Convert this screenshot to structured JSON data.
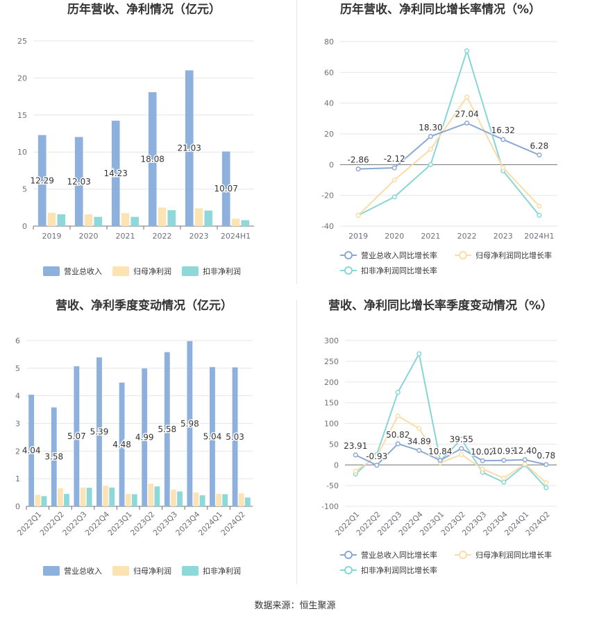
{
  "source": "数据来源：恒生聚源",
  "colors": {
    "revenue": "#8eb0dc",
    "parent_profit": "#fce3b4",
    "nonrecurring_profit": "#8fd8da",
    "revenue_line": "#8aa8d6",
    "parent_line": "#fbdca6",
    "nonrec_line": "#86d5d8",
    "grid": "#e6e6e6",
    "axis_text": "#6e7079"
  },
  "chart_data": [
    {
      "type": "bar",
      "title": "历年营收、净利情况（亿元）",
      "categories": [
        "2019",
        "2020",
        "2021",
        "2022",
        "2023",
        "2024H1"
      ],
      "series": [
        {
          "name": "营业总收入",
          "values": [
            12.29,
            12.03,
            14.23,
            18.08,
            21.03,
            10.07
          ],
          "labels": [
            "12.29",
            "12.03",
            "14.23",
            "18.08",
            "21.03",
            "10.07"
          ]
        },
        {
          "name": "归母净利润",
          "values": [
            1.8,
            1.6,
            1.75,
            2.5,
            2.4,
            1.0
          ]
        },
        {
          "name": "扣非净利润",
          "values": [
            1.6,
            1.25,
            1.25,
            2.15,
            2.1,
            0.8
          ]
        }
      ],
      "yticks": [
        "0",
        "5",
        "10",
        "15",
        "20",
        "25"
      ],
      "ylim": [
        0,
        25
      ]
    },
    {
      "type": "line",
      "title": "历年营收、净利同比增长率情况（%）",
      "categories": [
        "2019",
        "2020",
        "2021",
        "2022",
        "2023",
        "2024H1"
      ],
      "series": [
        {
          "name": "营业总收入同比增长率",
          "values": [
            -2.86,
            -2.12,
            18.3,
            27.04,
            16.32,
            6.28
          ],
          "labels": [
            "-2.86",
            "-2.12",
            "18.30",
            "27.04",
            "16.32",
            "6.28"
          ]
        },
        {
          "name": "归母净利润同比增长率",
          "values": [
            -33,
            -10,
            10,
            44,
            -2,
            -27
          ]
        },
        {
          "name": "扣非净利润同比增长率",
          "values": [
            -33,
            -21,
            0,
            74,
            -4,
            -33
          ]
        }
      ],
      "yticks": [
        "-40",
        "-20",
        "0",
        "20",
        "40",
        "60",
        "80"
      ],
      "ylim": [
        -40,
        80
      ]
    },
    {
      "type": "bar",
      "title": "营收、净利季度变动情况（亿元）",
      "categories": [
        "2022Q1",
        "2022Q2",
        "2022Q3",
        "2022Q4",
        "2023Q1",
        "2023Q2",
        "2023Q3",
        "2023Q4",
        "2024Q1",
        "2024Q2"
      ],
      "series": [
        {
          "name": "营业总收入",
          "values": [
            4.04,
            3.58,
            5.07,
            5.39,
            4.48,
            4.99,
            5.58,
            5.98,
            5.04,
            5.03
          ],
          "labels": [
            "4.04",
            "3.58",
            "5.07",
            "5.39",
            "4.48",
            "4.99",
            "5.58",
            "5.98",
            "5.04",
            "5.03"
          ]
        },
        {
          "name": "归母净利润",
          "values": [
            0.42,
            0.65,
            0.68,
            0.75,
            0.45,
            0.82,
            0.6,
            0.5,
            0.46,
            0.47
          ]
        },
        {
          "name": "扣非净利润",
          "values": [
            0.37,
            0.45,
            0.67,
            0.68,
            0.44,
            0.72,
            0.54,
            0.4,
            0.44,
            0.32
          ]
        }
      ],
      "yticks": [
        "0",
        "1",
        "2",
        "3",
        "4",
        "5",
        "6"
      ],
      "ylim": [
        0,
        6
      ]
    },
    {
      "type": "line",
      "title": "营收、净利同比增长率季度变动情况（%）",
      "categories": [
        "2022Q1",
        "2022Q2",
        "2022Q3",
        "2022Q4",
        "2023Q1",
        "2023Q2",
        "2023Q3",
        "2023Q4",
        "2024Q1",
        "2024Q2"
      ],
      "series": [
        {
          "name": "营业总收入同比增长率",
          "values": [
            23.91,
            -0.93,
            50.82,
            34.89,
            10.84,
            39.55,
            10.02,
            10.93,
            12.4,
            0.78
          ],
          "labels": [
            "23.91",
            "-0.93",
            "50.82",
            "34.89",
            "10.84",
            "39.55",
            "10.02",
            "10.93",
            "12.40",
            "0.78"
          ]
        },
        {
          "name": "归母净利润同比增长率",
          "values": [
            -15,
            20,
            118,
            88,
            5,
            25,
            -10,
            -32,
            2,
            -43
          ]
        },
        {
          "name": "扣非净利润同比增长率",
          "values": [
            -22,
            25,
            175,
            268,
            10,
            62,
            -18,
            -42,
            0,
            -55
          ]
        }
      ],
      "yticks": [
        "-100",
        "-50",
        "0",
        "50",
        "100",
        "150",
        "200",
        "250",
        "300"
      ],
      "ylim": [
        -100,
        300
      ]
    }
  ]
}
